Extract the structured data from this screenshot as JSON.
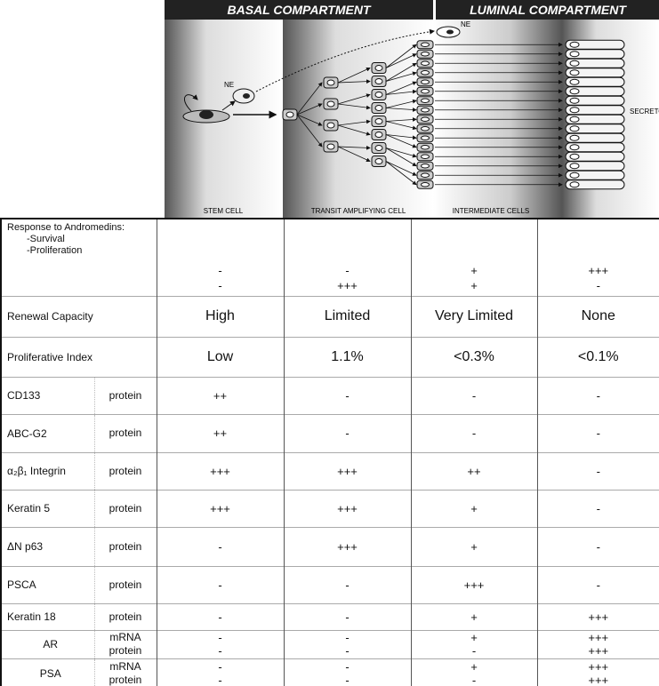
{
  "diagram": {
    "compartments": [
      "BASAL COMPARTMENT",
      "LUMINAL COMPARTMENT"
    ],
    "ne_labels": [
      "NE",
      "NE"
    ],
    "cell_labels": [
      "STEM CELL",
      "TRANSIT AMPLIFYING CELL",
      "INTERMEDIATE CELLS",
      "SECRETORY LUMINAL CELLS"
    ]
  },
  "table": {
    "response": {
      "title": "Response to Andromedins:",
      "items": [
        "-Survival",
        "-Proliferation"
      ],
      "values": [
        [
          "-",
          "-"
        ],
        [
          "-",
          "+++"
        ],
        [
          "+",
          "+"
        ],
        [
          "+++",
          "-"
        ]
      ]
    },
    "rows": [
      {
        "label": "Renewal Capacity",
        "values": [
          "High",
          "Limited",
          "Very Limited",
          "None"
        ]
      },
      {
        "label": "Proliferative Index",
        "values": [
          "Low",
          "1.1%",
          "<0.3%",
          "<0.1%"
        ]
      },
      {
        "label": "CD133",
        "subs": [
          "protein"
        ],
        "values": [
          [
            "++"
          ],
          [
            "-"
          ],
          [
            "-"
          ],
          [
            "-"
          ]
        ]
      },
      {
        "label": "ABC-G2",
        "subs": [
          "protein"
        ],
        "values": [
          [
            "++"
          ],
          [
            "-"
          ],
          [
            "-"
          ],
          [
            "-"
          ]
        ]
      },
      {
        "label": "α₂β₁ Integrin",
        "subs": [
          "protein"
        ],
        "values": [
          [
            "+++"
          ],
          [
            "+++"
          ],
          [
            "++"
          ],
          [
            "-"
          ]
        ]
      },
      {
        "label": "Keratin 5",
        "subs": [
          "protein"
        ],
        "values": [
          [
            "+++"
          ],
          [
            "+++"
          ],
          [
            "+"
          ],
          [
            "-"
          ]
        ]
      },
      {
        "label": "ΔN p63",
        "subs": [
          "protein"
        ],
        "values": [
          [
            "-"
          ],
          [
            "+++"
          ],
          [
            "+"
          ],
          [
            "-"
          ]
        ]
      },
      {
        "label": "PSCA",
        "subs": [
          "protein"
        ],
        "values": [
          [
            "-"
          ],
          [
            "-"
          ],
          [
            "+++"
          ],
          [
            "-"
          ]
        ]
      },
      {
        "label": "Keratin 18",
        "subs": [
          "protein"
        ],
        "values": [
          [
            "-"
          ],
          [
            "-"
          ],
          [
            "+"
          ],
          [
            "+++"
          ]
        ]
      },
      {
        "label": "AR",
        "subs": [
          "mRNA",
          "protein"
        ],
        "values": [
          [
            "-",
            "-"
          ],
          [
            "-",
            "-"
          ],
          [
            "+",
            "-"
          ],
          [
            "+++",
            "+++"
          ]
        ]
      },
      {
        "label": "PSA",
        "subs": [
          "mRNA",
          "protein"
        ],
        "values": [
          [
            "-",
            "-"
          ],
          [
            "-",
            "-"
          ],
          [
            "+",
            "-"
          ],
          [
            "+++",
            "+++"
          ]
        ]
      }
    ]
  }
}
